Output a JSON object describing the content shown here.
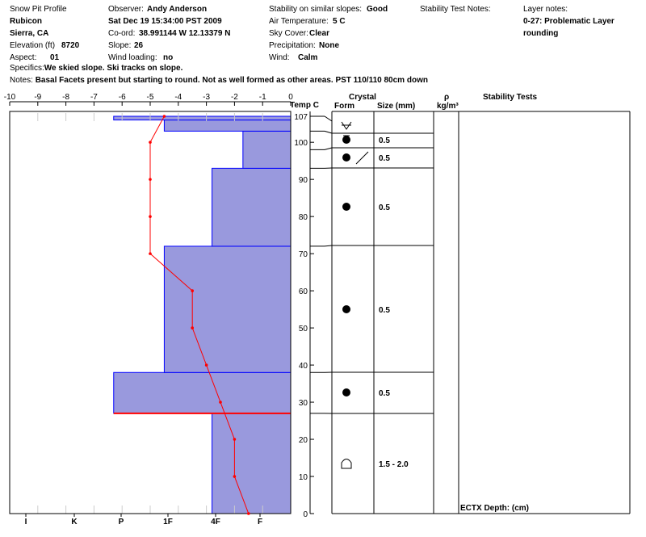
{
  "header": {
    "profile_label": "Snow Pit Profile",
    "location": "Rubicon",
    "region": "Sierra, CA",
    "elevation_label": "Elevation (ft)",
    "elevation_value": "8720",
    "aspect_label": "Aspect:",
    "aspect_value": "01",
    "observer_label": "Observer:",
    "observer_value": "Andy Anderson",
    "datetime": "Sat Dec 19 15:34:00 PST 2009",
    "coord_label": "Co-ord:",
    "coord_value": "38.991144 W 12.13379 N",
    "slope_label": "Slope:",
    "slope_value": "26",
    "wind_loading_label": "Wind loading:",
    "wind_loading_value": "no",
    "stability_label": "Stability on similar slopes:",
    "stability_value": "Good",
    "air_temp_label": "Air Temperature:",
    "air_temp_value": "5 C",
    "sky_label": "Sky Cover:",
    "sky_value": "Clear",
    "precip_label": "Precipitation:",
    "precip_value": "None",
    "wind_label": "Wind:",
    "wind_value": "Calm",
    "stab_notes_label": "Stability Test Notes:",
    "layer_notes_label": "Layer notes:",
    "layer_notes_1": "0-27: Problematic Layer",
    "layer_notes_2": "rounding",
    "specifics_label": "Specifics:",
    "specifics_value": "We skied slope. Ski tracks on slope.",
    "notes_label": "Notes:",
    "notes_value": "Basal Facets present but starting  to round. Not as well formed as other areas. PST 110/110 80cm down"
  },
  "columns": {
    "temp": "Temp C",
    "crystal": "Crystal",
    "form": "Form",
    "size": "Size (mm)",
    "rho": "ρ",
    "rho_unit": "kg/m³",
    "stability": "Stability Tests",
    "ectx": "ECTX   Depth: (cm)"
  },
  "chart_data": {
    "type": "snow-pit-profile",
    "temp_axis": {
      "ticks": [
        -10,
        -9,
        -8,
        -7,
        -6,
        -5,
        -4,
        -3,
        -2,
        -1,
        0
      ],
      "range": [
        -10,
        0
      ]
    },
    "hardness_axis": {
      "labels": [
        "I",
        "K",
        "P",
        "1F",
        "4F",
        "F"
      ]
    },
    "height_axis": {
      "range": [
        0,
        107
      ],
      "ticks": [
        0,
        10,
        20,
        30,
        40,
        50,
        60,
        70,
        80,
        90,
        100,
        107
      ]
    },
    "hardness_layers": [
      {
        "bottom": 0,
        "top": 27,
        "temp_edge": -2.8
      },
      {
        "bottom": 27,
        "top": 38,
        "temp_edge": -6.3
      },
      {
        "bottom": 38,
        "top": 72,
        "temp_edge": -4.5
      },
      {
        "bottom": 72,
        "top": 93,
        "temp_edge": -2.8
      },
      {
        "bottom": 93,
        "top": 103,
        "temp_edge": -1.7
      },
      {
        "bottom": 103,
        "top": 106,
        "temp_edge": -4.5
      },
      {
        "bottom": 106,
        "top": 107,
        "temp_edge": -6.3
      }
    ],
    "temp_profile": [
      {
        "h": 0,
        "t": -1.5
      },
      {
        "h": 10,
        "t": -2
      },
      {
        "h": 20,
        "t": -2
      },
      {
        "h": 30,
        "t": -2.5
      },
      {
        "h": 40,
        "t": -3
      },
      {
        "h": 50,
        "t": -3.5
      },
      {
        "h": 60,
        "t": -3.5
      },
      {
        "h": 70,
        "t": -5
      },
      {
        "h": 80,
        "t": -5
      },
      {
        "h": 90,
        "t": -5
      },
      {
        "h": 100,
        "t": -5
      },
      {
        "h": 107,
        "t": -4.5
      }
    ],
    "problem_layer_height": 27,
    "crystal_layers": [
      {
        "bottom": 0,
        "top": 27,
        "form": "depth-hoar",
        "size": "1.5 -   2.0"
      },
      {
        "bottom": 27,
        "top": 38,
        "form": "rounds",
        "size": "0.5"
      },
      {
        "bottom": 38,
        "top": 72,
        "form": "rounds",
        "size": "0.5"
      },
      {
        "bottom": 72,
        "top": 93,
        "form": "rounds",
        "size": "0.5"
      },
      {
        "bottom": 93,
        "top": 98,
        "form": "rounds-decomposing",
        "size": "0.5"
      },
      {
        "bottom": 98,
        "top": 103,
        "form": "rounds",
        "size": "0.5"
      },
      {
        "bottom": 103,
        "top": 107,
        "form": "surface-hoar",
        "size": ""
      }
    ]
  },
  "colors": {
    "layer_fill": "#9999dd",
    "layer_line": "#0000ff",
    "temp_line": "#ff0000",
    "problem_line": "#ff0000"
  }
}
